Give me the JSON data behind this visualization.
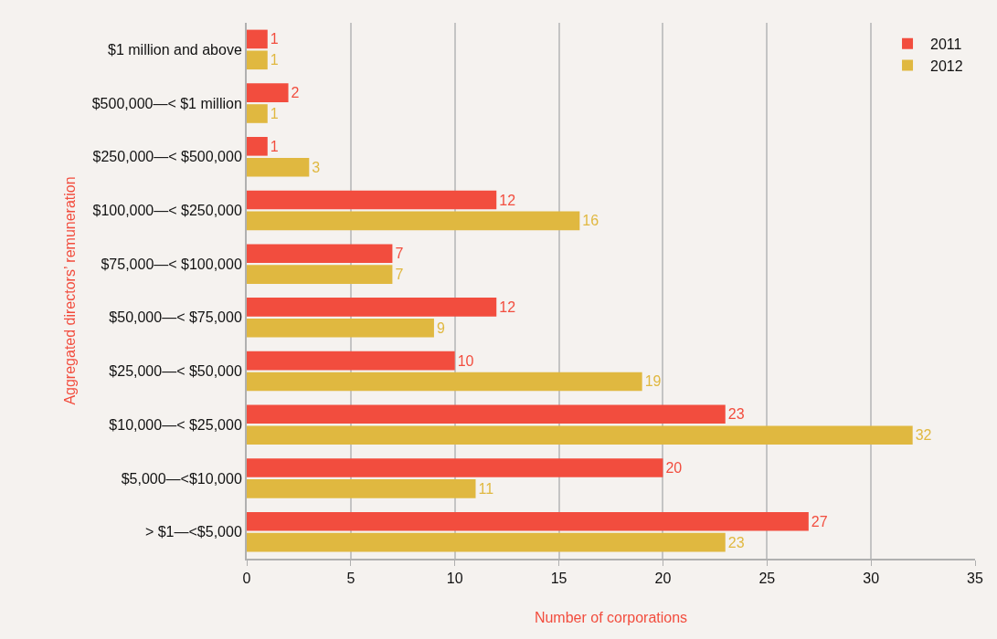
{
  "chart_data": {
    "type": "bar",
    "orientation": "horizontal",
    "xlabel": "Number of corporations",
    "ylabel": "Aggregated directors’ remuneration",
    "categories": [
      "$1 million and above",
      "$500,000—< $1 million",
      "$250,000—< $500,000",
      "$100,000—< $250,000",
      "$75,000—< $100,000",
      "$50,000—< $75,000",
      "$25,000—< $50,000",
      "$10,000—< $25,000",
      "$5,000—<$10,000",
      "> $1—<$5,000"
    ],
    "series": [
      {
        "name": "2011",
        "color": "#f24d3e",
        "values": [
          1,
          2,
          1,
          12,
          7,
          12,
          10,
          23,
          20,
          27
        ]
      },
      {
        "name": "2012",
        "color": "#e0b840",
        "values": [
          1,
          1,
          3,
          16,
          7,
          9,
          19,
          32,
          11,
          23
        ]
      }
    ],
    "xlim": [
      0,
      35
    ],
    "xticks": [
      0,
      5,
      10,
      15,
      20,
      25,
      30,
      35
    ],
    "grid": "x",
    "legend": "top right",
    "data_labels": true
  }
}
